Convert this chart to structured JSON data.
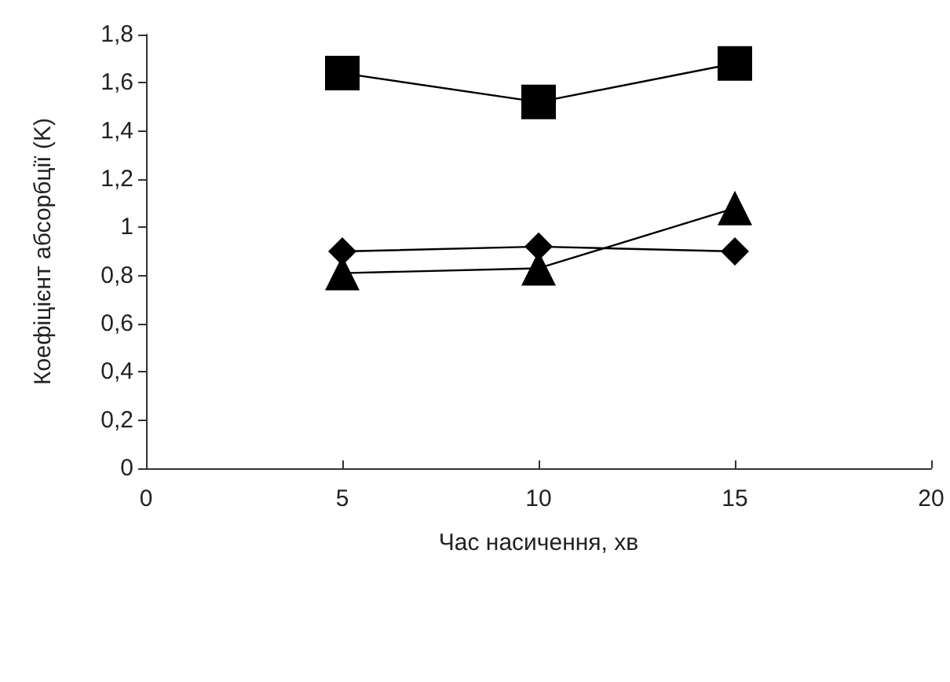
{
  "chart_data": {
    "type": "line",
    "xlabel": "Час насичення, хв",
    "ylabel": "Коефіцієнт абсорбції (K)",
    "x": [
      5,
      10,
      15
    ],
    "series": [
      {
        "color": "#000000",
        "marker": "diamond",
        "values": [
          0.9,
          0.92,
          0.9
        ]
      },
      {
        "color": "#000000",
        "marker": "square",
        "values": [
          1.64,
          1.52,
          1.68
        ]
      },
      {
        "color": "#000000",
        "marker": "triangle",
        "values": [
          0.81,
          0.83,
          1.08
        ]
      }
    ],
    "xlim": [
      0,
      20
    ],
    "xticks": [
      0,
      5,
      10,
      15,
      20
    ],
    "ylim": [
      0,
      1.8
    ],
    "yticks": [
      0,
      {
        "value": 0.2,
        "label": "0,2"
      },
      {
        "value": 0.4,
        "label": "0,4"
      },
      {
        "value": 0.6,
        "label": "0,6"
      },
      {
        "value": 0.8,
        "label": "0,8"
      },
      1,
      {
        "value": 1.2,
        "label": "1,2"
      },
      {
        "value": 1.4,
        "label": "1,4"
      },
      {
        "value": 1.6,
        "label": "1,6"
      },
      {
        "value": 1.8,
        "label": "1,8"
      }
    ],
    "grid": false,
    "line_style": "solid"
  }
}
